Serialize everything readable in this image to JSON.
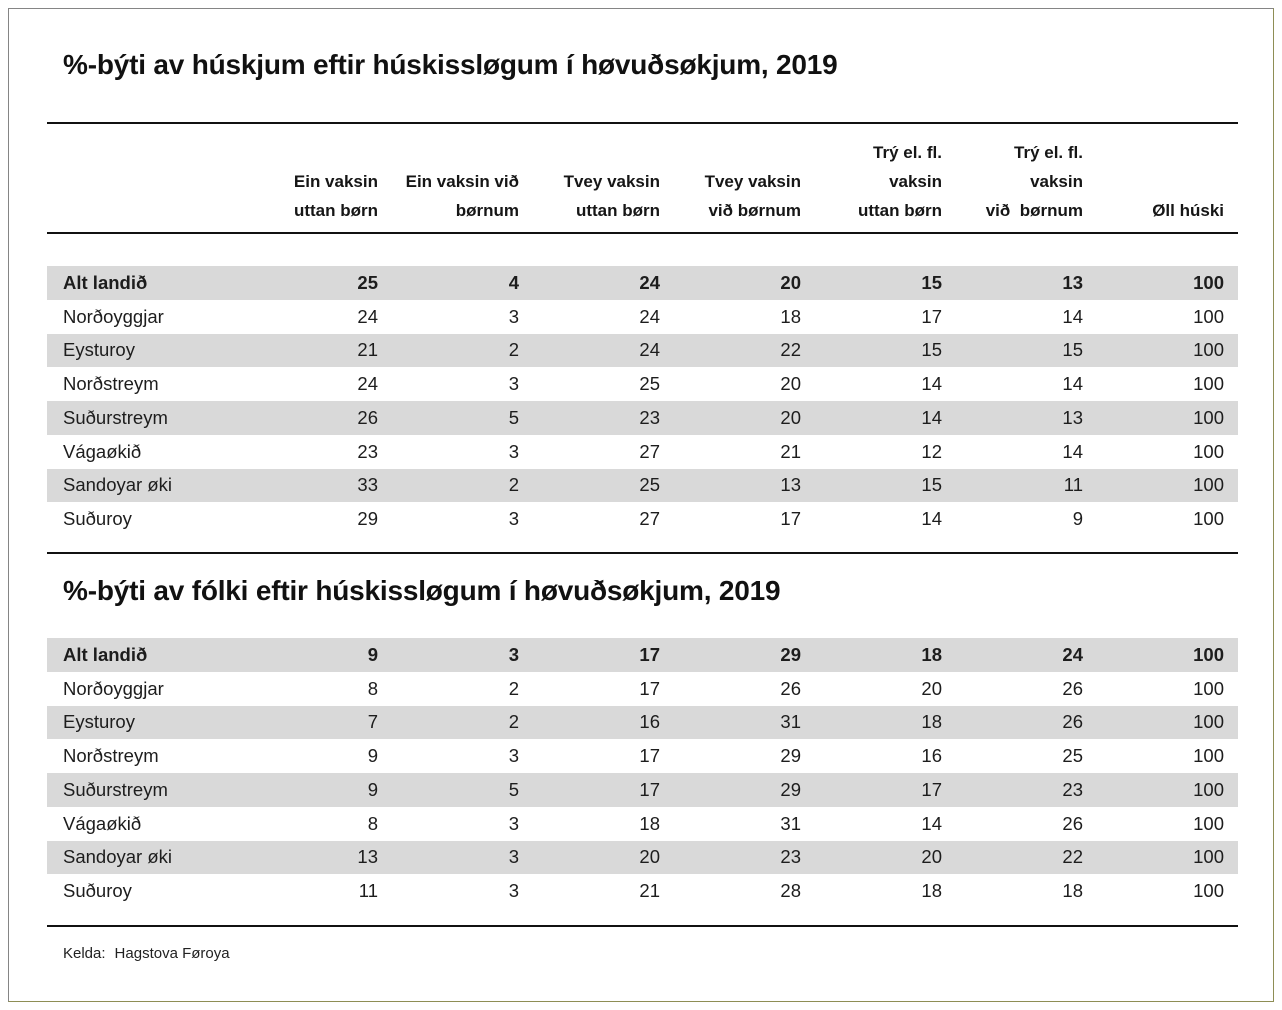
{
  "colors": {
    "stripe": "#d9d9d9",
    "rule": "#111111",
    "text": "#1d1d1d",
    "frame_border_gray": "#858585",
    "frame_border_olive": "#8e8e55"
  },
  "header_columns": [
    {
      "lines": [
        "Ein vaksin",
        "uttan børn"
      ]
    },
    {
      "lines": [
        "Ein vaksin við",
        "børnum"
      ]
    },
    {
      "lines": [
        "Tvey vaksin",
        "uttan børn"
      ]
    },
    {
      "lines": [
        "Tvey vaksin",
        "við børnum"
      ]
    },
    {
      "lines": [
        "Trý el. fl.",
        "vaksin",
        "uttan børn"
      ]
    },
    {
      "lines": [
        "Trý el. fl.",
        "vaksin",
        "við  børnum"
      ]
    },
    {
      "lines": [
        "Øll húski"
      ]
    }
  ],
  "chart_data": [
    {
      "type": "table",
      "title": "%-býti av húskjum eftir húskissløgum í høvuðsøkjum, 2019",
      "columns": [
        "",
        "Ein vaksin uttan børn",
        "Ein vaksin við børnum",
        "Tvey vaksin uttan børn",
        "Tvey vaksin við børnum",
        "Trý el. fl. vaksin uttan børn",
        "Trý el. fl. vaksin við børnum",
        "Øll húski"
      ],
      "rows": [
        [
          "Alt landið",
          25,
          4,
          24,
          20,
          15,
          13,
          100
        ],
        [
          "Norðoyggjar",
          24,
          3,
          24,
          18,
          17,
          14,
          100
        ],
        [
          "Eysturoy",
          21,
          2,
          24,
          22,
          15,
          15,
          100
        ],
        [
          "Norðstreym",
          24,
          3,
          25,
          20,
          14,
          14,
          100
        ],
        [
          "Suðurstreym",
          26,
          5,
          23,
          20,
          14,
          13,
          100
        ],
        [
          "Vágaøkið",
          23,
          3,
          27,
          21,
          12,
          14,
          100
        ],
        [
          "Sandoyar øki",
          33,
          2,
          25,
          13,
          15,
          11,
          100
        ],
        [
          "Suðuroy",
          29,
          3,
          27,
          17,
          14,
          9,
          100
        ]
      ]
    },
    {
      "type": "table",
      "title": "%-býti av fólki eftir húskissløgum í høvuðsøkjum, 2019",
      "columns": [
        "",
        "Ein vaksin uttan børn",
        "Ein vaksin við børnum",
        "Tvey vaksin uttan børn",
        "Tvey vaksin við børnum",
        "Trý el. fl. vaksin uttan børn",
        "Trý el. fl. vaksin við børnum",
        "Øll húski"
      ],
      "rows": [
        [
          "Alt landið",
          9,
          3,
          17,
          29,
          18,
          24,
          100
        ],
        [
          "Norðoyggjar",
          8,
          2,
          17,
          26,
          20,
          26,
          100
        ],
        [
          "Eysturoy",
          7,
          2,
          16,
          31,
          18,
          26,
          100
        ],
        [
          "Norðstreym",
          9,
          3,
          17,
          29,
          16,
          25,
          100
        ],
        [
          "Suðurstreym",
          9,
          5,
          17,
          29,
          17,
          23,
          100
        ],
        [
          "Vágaøkið",
          8,
          3,
          18,
          31,
          14,
          26,
          100
        ],
        [
          "Sandoyar øki",
          13,
          3,
          20,
          23,
          20,
          22,
          100
        ],
        [
          "Suðuroy",
          11,
          3,
          21,
          28,
          18,
          18,
          100
        ]
      ]
    }
  ],
  "footer": {
    "label": "Kelda:",
    "value": "Hagstova Føroya"
  }
}
